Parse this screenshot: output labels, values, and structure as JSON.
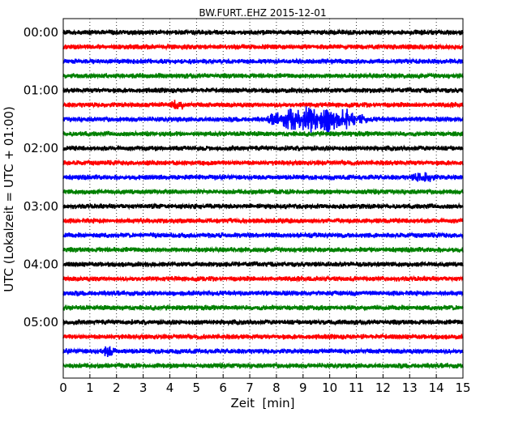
{
  "chart_data": {
    "type": "line",
    "title": "BW.FURT..EHZ 2015-12-01",
    "xlabel": "Zeit  [min]",
    "ylabel": "UTC (Lokalzeit = UTC + 01:00)",
    "xlim": [
      0,
      15
    ],
    "x_ticks": [
      "0",
      "1",
      "2",
      "3",
      "4",
      "5",
      "6",
      "7",
      "8",
      "9",
      "10",
      "11",
      "12",
      "13",
      "14",
      "15"
    ],
    "y_tick_labels": [
      "00:00",
      "01:00",
      "02:00",
      "03:00",
      "04:00",
      "05:00"
    ],
    "trace_interval_min": 15,
    "grid": "vertical dotted",
    "color_cycle": [
      "#000000",
      "#ff0000",
      "#0000ff",
      "#008000"
    ],
    "traces_start": [
      "00:00",
      "00:15",
      "00:30",
      "00:45",
      "01:00",
      "01:15",
      "01:30",
      "01:45",
      "02:00",
      "02:15",
      "02:30",
      "02:45",
      "03:00",
      "03:15",
      "03:30",
      "03:45",
      "04:00",
      "04:15",
      "04:30",
      "04:45",
      "05:00",
      "05:15",
      "05:30",
      "05:45"
    ],
    "events": [
      {
        "trace": "01:30",
        "x_start_min": 7.5,
        "x_end_min": 11.5,
        "description": "largest amplitude burst around 8.5-10 min"
      },
      {
        "trace": "01:15",
        "x_start_min": 4.0,
        "x_end_min": 4.6
      },
      {
        "trace": "02:30",
        "x_start_min": 13.0,
        "x_end_min": 14.0
      },
      {
        "trace": "05:30",
        "x_start_min": 1.4,
        "x_end_min": 2.0
      }
    ]
  }
}
